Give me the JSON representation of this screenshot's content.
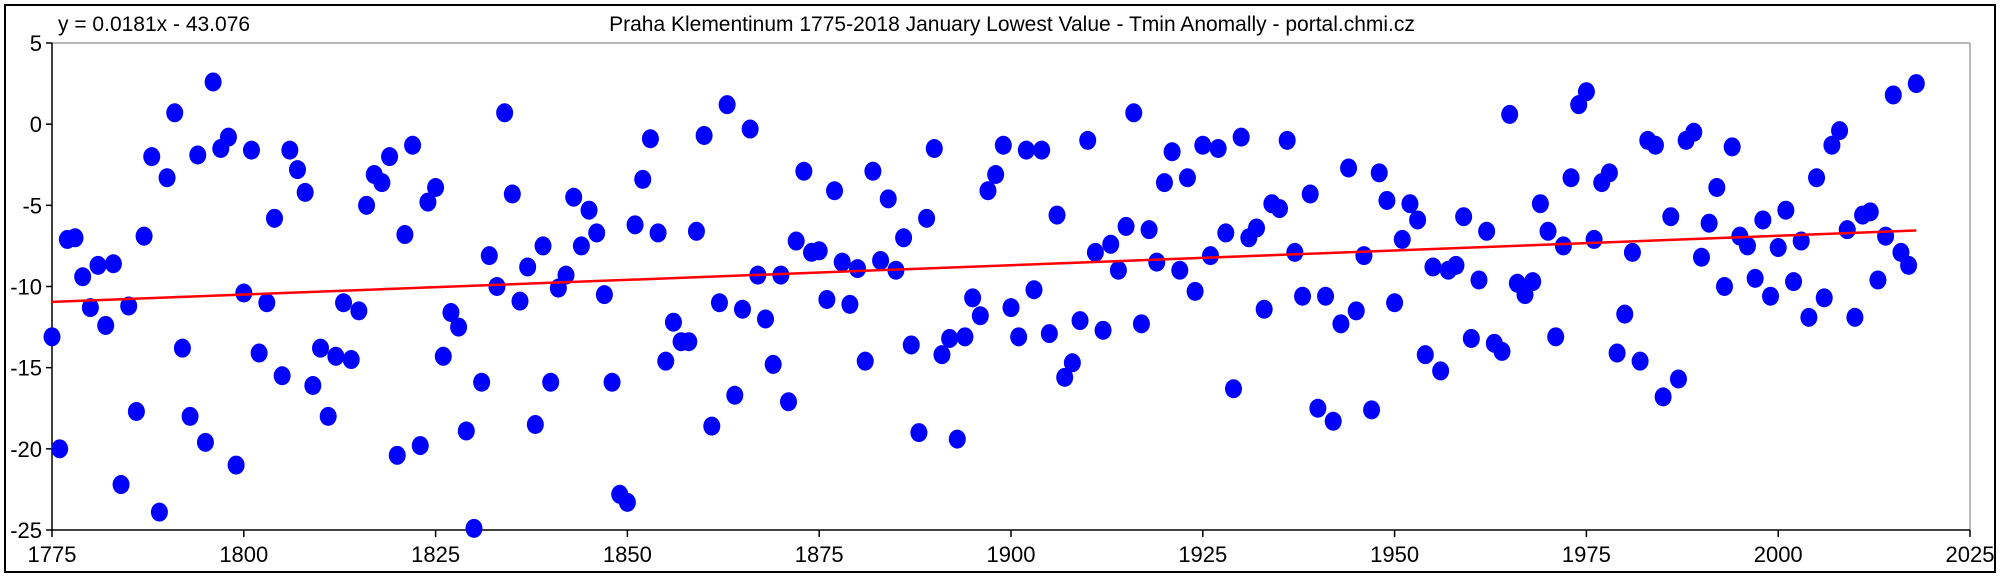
{
  "chart_data": {
    "type": "scatter",
    "title": "Praha Klementinum 1775-2018 January Lowest Value - Tmin Anomally - portal.chmi.cz",
    "equation": "y = 0.0181x - 43.076",
    "xlabel": "",
    "ylabel": "",
    "xlim": [
      1775,
      2025
    ],
    "ylim": [
      -25,
      5
    ],
    "x_ticks": [
      "1775",
      "1800",
      "1825",
      "1850",
      "1875",
      "1900",
      "1925",
      "1950",
      "1975",
      "2000",
      "2025"
    ],
    "y_ticks": [
      "5",
      "0",
      "-5",
      "-10",
      "-15",
      "-20",
      "-25"
    ],
    "grid": false,
    "legend": "none",
    "colors": {
      "points": "#0000FF",
      "trend": "#FF0000"
    },
    "trendline": {
      "slope": 0.0181,
      "intercept": -43.076,
      "x_range": [
        1775,
        2018
      ]
    },
    "x_start": 1775,
    "values": [
      -13.1,
      -20.0,
      -7.1,
      -7.0,
      -9.4,
      -11.3,
      -8.7,
      -12.4,
      -8.6,
      -22.2,
      -11.2,
      -17.7,
      -6.9,
      -2.0,
      -23.9,
      -3.3,
      0.7,
      -13.8,
      -18.0,
      -1.9,
      -19.6,
      2.6,
      -1.5,
      -0.8,
      -21.0,
      -10.4,
      -1.6,
      -14.1,
      -11.0,
      -5.8,
      -15.5,
      -1.6,
      -2.8,
      -4.2,
      -16.1,
      -13.8,
      -18.0,
      -14.3,
      -11.0,
      -14.5,
      -11.5,
      -5.0,
      -3.1,
      -3.6,
      -2.0,
      -20.4,
      -6.8,
      -1.3,
      -19.8,
      -4.8,
      -3.9,
      -14.3,
      -11.6,
      -12.5,
      -18.9,
      -24.9,
      -15.9,
      -8.1,
      -10.0,
      0.7,
      -4.3,
      -10.9,
      -8.8,
      -18.5,
      -7.5,
      -15.9,
      -10.1,
      -9.3,
      -4.5,
      -7.5,
      -5.3,
      -6.7,
      -10.5,
      -15.9,
      -22.8,
      -23.3,
      -6.2,
      -3.4,
      -0.9,
      -6.7,
      -14.6,
      -12.2,
      -13.4,
      -13.4,
      -6.6,
      -0.7,
      -18.6,
      -11.0,
      1.2,
      -16.7,
      -11.4,
      -0.3,
      -9.3,
      -12.0,
      -14.8,
      -9.3,
      -17.1,
      -7.2,
      -2.9,
      -7.9,
      -7.8,
      -10.8,
      -4.1,
      -8.5,
      -11.1,
      -8.9,
      -14.6,
      -2.9,
      -8.4,
      -4.6,
      -9.0,
      -7.0,
      -13.6,
      -19.0,
      -5.8,
      -1.5,
      -14.2,
      -13.2,
      -19.4,
      -13.1,
      -10.7,
      -11.8,
      -4.1,
      -3.1,
      -1.3,
      -11.3,
      -13.1,
      -1.6,
      -10.2,
      -1.6,
      -12.9,
      -5.6,
      -15.6,
      -14.7,
      -12.1,
      -1.0,
      -7.9,
      -12.7,
      -7.4,
      -9.0,
      -6.3,
      0.7,
      -12.3,
      -6.5,
      -8.5,
      -3.6,
      -1.7,
      -9.0,
      -3.3,
      -10.3,
      -1.3,
      -8.1,
      -1.5,
      -6.7,
      -16.3,
      -0.8,
      -7.0,
      -6.4,
      -11.4,
      -4.9,
      -5.2,
      -1.0,
      -7.9,
      -10.6,
      -4.3,
      -17.5,
      -10.6,
      -18.3,
      -12.3,
      -2.7,
      -11.5,
      -8.1,
      -17.6,
      -3.0,
      -4.7,
      -11.0,
      -7.1,
      -4.9,
      -5.9,
      -14.2,
      -8.8,
      -15.2,
      -9.0,
      -8.7,
      -5.7,
      -13.2,
      -9.6,
      -6.6,
      -13.5,
      -14.0,
      0.6,
      -9.8,
      -10.5,
      -9.7,
      -4.9,
      -6.6,
      -13.1,
      -7.5,
      -3.3,
      1.2,
      2.0,
      -7.1,
      -3.6,
      -3.0,
      -14.1,
      -11.7,
      -7.9,
      -14.6,
      -1.0,
      -1.3,
      -16.8,
      -5.7,
      -15.7,
      -1.0,
      -0.5,
      -8.2,
      -6.1,
      -3.9,
      -10.0,
      -1.4,
      -6.9,
      -7.5,
      -9.5,
      -5.9,
      -10.6,
      -7.6,
      -5.3,
      -9.7,
      -7.2,
      -11.9,
      -3.3,
      -10.7,
      -1.3,
      -0.4,
      -6.5,
      -11.9,
      -5.6,
      -5.4,
      -9.6,
      -6.9,
      1.8,
      -7.9,
      -8.7,
      2.5
    ]
  }
}
